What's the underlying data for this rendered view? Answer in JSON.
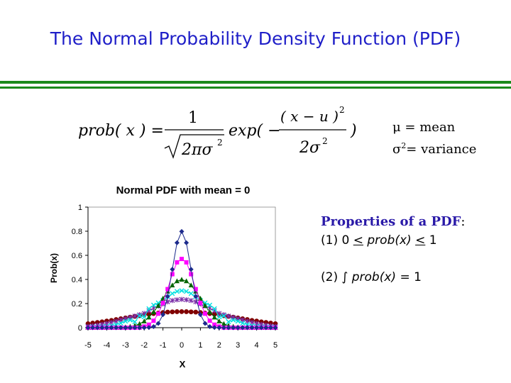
{
  "slide": {
    "title": "The Normal Probability Density Function (PDF)",
    "colors": {
      "title": "#1f1fc8",
      "rule": "#1a8a1a",
      "properties_heading": "#2a1aa8"
    }
  },
  "formula": {
    "lhs": "prob( x ) =",
    "numerator": "1",
    "denominator": "2πσ",
    "denominator_exp": "2",
    "exp_prefix": "exp( −",
    "exp_numerator": "( x − u )",
    "exp_numerator_exp": "2",
    "exp_denominator": "2σ",
    "exp_denominator_exp": "2",
    "close": ")"
  },
  "definitions": {
    "mu_symbol": "μ",
    "mu_text": " = mean",
    "sigma_symbol": "σ",
    "sigma_exp": "2",
    "sigma_text": "= variance"
  },
  "properties": {
    "heading": "Properties of a PDF",
    "heading_colon": ":",
    "p1_prefix": "(1) 0 ",
    "p1_le1": "<",
    "p1_expr": " prob(x) ",
    "p1_le2": "<",
    "p1_suffix": " 1",
    "p2_prefix": "(2) ∫ ",
    "p2_expr": "prob(x)",
    "p2_suffix": " = 1"
  },
  "chart_data": {
    "type": "scatter",
    "title": "Normal PDF with mean = 0",
    "xlabel": "X",
    "ylabel": "Prob(x)",
    "xlim": [
      -5,
      5
    ],
    "ylim": [
      0,
      1
    ],
    "x_ticks": [
      "-5",
      "-4",
      "-3",
      "-2",
      "-1",
      "0",
      "1",
      "2",
      "3",
      "4",
      "5"
    ],
    "y_ticks": [
      "0",
      "0.2",
      "0.4",
      "0.6",
      "0.8",
      "1"
    ],
    "grid": false,
    "x": [
      -5,
      -4.75,
      -4.5,
      -4.25,
      -4,
      -3.75,
      -3.5,
      -3.25,
      -3,
      -2.75,
      -2.5,
      -2.25,
      -2,
      -1.75,
      -1.5,
      -1.25,
      -1,
      -0.75,
      -0.5,
      -0.25,
      0,
      0.25,
      0.5,
      0.75,
      1,
      1.25,
      1.5,
      1.75,
      2,
      2.25,
      2.5,
      2.75,
      3,
      3.25,
      3.5,
      3.75,
      4,
      4.25,
      4.5,
      4.75,
      5
    ],
    "series": [
      {
        "sigma": 0.5,
        "color": "#1c2a8c",
        "marker": "diamond",
        "values": [
          0.0,
          0.0,
          0.0,
          0.0,
          0.0,
          0.0,
          0.0,
          0.0,
          0.0,
          0.0,
          0.0,
          0.0,
          0.0001,
          0.0017,
          0.0089,
          0.035,
          0.108,
          0.259,
          0.4839,
          0.7041,
          0.7979,
          0.7041,
          0.4839,
          0.259,
          0.108,
          0.035,
          0.0089,
          0.0017,
          0.0001,
          0.0,
          0.0,
          0.0,
          0.0,
          0.0,
          0.0,
          0.0,
          0.0,
          0.0,
          0.0,
          0.0,
          0.0
        ]
      },
      {
        "sigma": 0.7,
        "color": "#ff00ff",
        "marker": "square",
        "values": [
          0.0,
          0.0,
          0.0,
          0.0,
          0.0,
          0.0,
          0.0,
          0.0,
          0.0,
          0.0,
          0.0,
          0.0,
          0.0095,
          0.025,
          0.0576,
          0.1159,
          0.2055,
          0.32,
          0.4436,
          0.5419,
          0.5699,
          0.5419,
          0.4436,
          0.32,
          0.2055,
          0.1159,
          0.0576,
          0.025,
          0.0095,
          0.0,
          0.0,
          0.0,
          0.0,
          0.0,
          0.0,
          0.0,
          0.0,
          0.0,
          0.0,
          0.0,
          0.0
        ]
      },
      {
        "sigma": 1.0,
        "color": "#006400",
        "marker": "triangle",
        "values": [
          0.0,
          0.0,
          0.0,
          0.0,
          0.0001,
          0.0004,
          0.0009,
          0.002,
          0.0044,
          0.0091,
          0.0175,
          0.0317,
          0.054,
          0.0863,
          0.1295,
          0.1826,
          0.242,
          0.3011,
          0.3521,
          0.3867,
          0.3989,
          0.3867,
          0.3521,
          0.3011,
          0.242,
          0.1826,
          0.1295,
          0.0863,
          0.054,
          0.0317,
          0.0175,
          0.0091,
          0.0044,
          0.002,
          0.0009,
          0.0004,
          0.0001,
          0.0,
          0.0,
          0.0,
          0.0
        ]
      },
      {
        "sigma": 1.3,
        "color": "#00e0e0",
        "marker": "x",
        "values": [
          0.0018,
          0.0036,
          0.0034,
          0.0057,
          0.0103,
          0.0165,
          0.0252,
          0.0373,
          0.0535,
          0.0632,
          0.0483,
          0.098,
          0.09,
          0.1573,
          0.1873,
          0.2059,
          0.2272,
          0.2571,
          0.283,
          0.3005,
          0.3069,
          0.3005,
          0.283,
          0.2571,
          0.2272,
          0.2059,
          0.1873,
          0.1573,
          0.09,
          0.098,
          0.0483,
          0.0632,
          0.0535,
          0.0373,
          0.0252,
          0.0165,
          0.0103,
          0.0057,
          0.0034,
          0.0036,
          0.0018
        ]
      },
      {
        "sigma": 1.7,
        "color": "#7b2fa8",
        "marker": "star",
        "values": [
          0.0105,
          0.0151,
          0.0206,
          0.0271,
          0.0348,
          0.0434,
          0.053,
          0.0643,
          0.074,
          0.0851,
          0.0965,
          0.1079,
          0.1187,
          0.1416,
          0.1619,
          0.178,
          0.196,
          0.2141,
          0.2252,
          0.2311,
          0.2347,
          0.2311,
          0.2252,
          0.2141,
          0.196,
          0.178,
          0.1619,
          0.1416,
          0.1187,
          0.1079,
          0.0965,
          0.0851,
          0.074,
          0.0643,
          0.053,
          0.0434,
          0.0348,
          0.0271,
          0.0206,
          0.0151,
          0.0105
        ]
      },
      {
        "sigma": 3.0,
        "color": "#800000",
        "marker": "circle",
        "values": [
          0.0332,
          0.0381,
          0.0432,
          0.0485,
          0.0547,
          0.0603,
          0.0673,
          0.074,
          0.0807,
          0.0873,
          0.0935,
          0.0994,
          0.1065,
          0.1111,
          0.1172,
          0.1215,
          0.1258,
          0.1292,
          0.1311,
          0.1326,
          0.133,
          0.1326,
          0.1311,
          0.1292,
          0.1258,
          0.1215,
          0.1172,
          0.1111,
          0.1065,
          0.0994,
          0.0935,
          0.0873,
          0.0807,
          0.074,
          0.0673,
          0.0603,
          0.0547,
          0.0485,
          0.0432,
          0.0381,
          0.0332
        ]
      }
    ]
  }
}
